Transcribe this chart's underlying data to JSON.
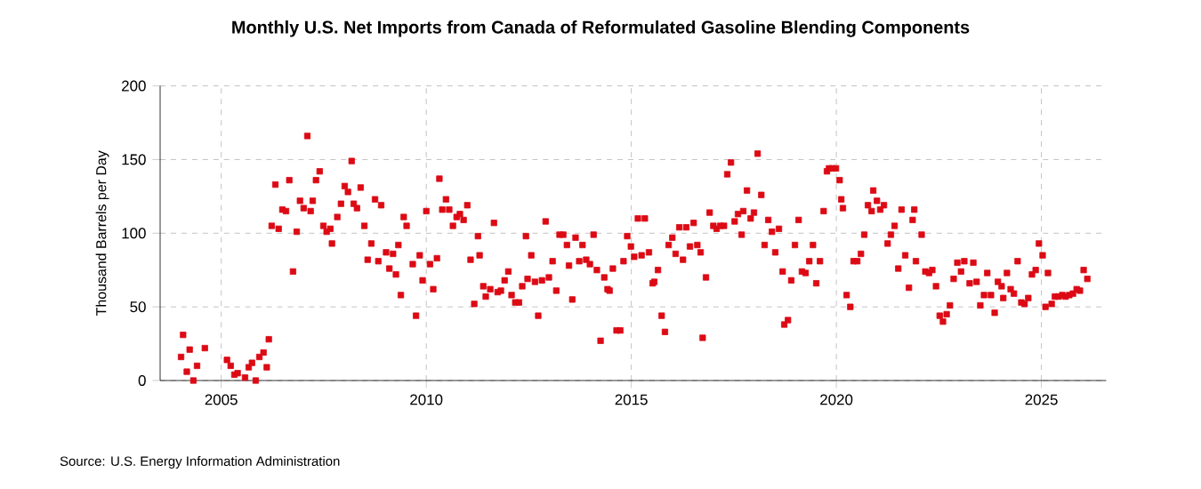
{
  "chart_data": {
    "type": "scatter",
    "title": "Monthly U.S. Net Imports from Canada of Reformulated Gasoline Blending Components",
    "ylabel": "Thousand Barrels per Day",
    "annotations": [
      "Source: U.S. Energy Information Administration"
    ],
    "color": "#dc0a14",
    "marker": "square",
    "grid": true,
    "xlim": [
      2003.51,
      2026.58
    ],
    "ylim": [
      0,
      200
    ],
    "xticks": [
      2005,
      2010,
      2015,
      2020,
      2025
    ],
    "yticks": [
      0,
      50,
      100,
      150,
      200
    ],
    "x": [
      2004.02,
      2004.07,
      2004.16,
      2004.23,
      2004.32,
      2004.41,
      2004.6,
      2005.14,
      2005.23,
      2005.32,
      2005.4,
      2005.58,
      2005.67,
      2005.75,
      2005.84,
      2005.93,
      2006.03,
      2006.11,
      2006.16,
      2006.23,
      2006.32,
      2006.4,
      2006.49,
      2006.58,
      2006.66,
      2006.75,
      2006.84,
      2006.92,
      2007.01,
      2007.1,
      2007.18,
      2007.23,
      2007.31,
      2007.4,
      2007.49,
      2007.57,
      2007.66,
      2007.7,
      2007.83,
      2007.92,
      2008.01,
      2008.09,
      2008.18,
      2008.23,
      2008.31,
      2008.4,
      2008.49,
      2008.57,
      2008.66,
      2008.75,
      2008.83,
      2008.9,
      2009.02,
      2009.1,
      2009.19,
      2009.26,
      2009.32,
      2009.38,
      2009.45,
      2009.52,
      2009.67,
      2009.75,
      2009.84,
      2009.91,
      2010.0,
      2010.09,
      2010.17,
      2010.26,
      2010.32,
      2010.39,
      2010.48,
      2010.56,
      2010.65,
      2010.74,
      2010.82,
      2010.91,
      2011.0,
      2011.08,
      2011.17,
      2011.26,
      2011.3,
      2011.39,
      2011.45,
      2011.56,
      2011.65,
      2011.74,
      2011.82,
      2011.91,
      2012.0,
      2012.08,
      2012.17,
      2012.26,
      2012.34,
      2012.43,
      2012.47,
      2012.56,
      2012.65,
      2012.73,
      2012.82,
      2012.91,
      2012.99,
      2013.08,
      2013.17,
      2013.25,
      2013.34,
      2013.43,
      2013.48,
      2013.56,
      2013.64,
      2013.73,
      2013.81,
      2013.9,
      2013.99,
      2014.08,
      2014.16,
      2014.25,
      2014.34,
      2014.42,
      2014.47,
      2014.55,
      2014.64,
      2014.73,
      2014.81,
      2014.9,
      2014.99,
      2015.07,
      2015.16,
      2015.25,
      2015.33,
      2015.43,
      2015.52,
      2015.56,
      2015.65,
      2015.74,
      2015.82,
      2015.91,
      2016.0,
      2016.08,
      2016.17,
      2016.26,
      2016.34,
      2016.43,
      2016.52,
      2016.61,
      2016.69,
      2016.74,
      2016.82,
      2016.91,
      2017.0,
      2017.08,
      2017.17,
      2017.26,
      2017.34,
      2017.43,
      2017.52,
      2017.6,
      2017.69,
      2017.73,
      2017.82,
      2017.91,
      2017.99,
      2018.08,
      2018.17,
      2018.25,
      2018.34,
      2018.43,
      2018.51,
      2018.6,
      2018.69,
      2018.73,
      2018.82,
      2018.9,
      2018.99,
      2019.08,
      2019.16,
      2019.25,
      2019.34,
      2019.43,
      2019.51,
      2019.6,
      2019.69,
      2019.77,
      2019.82,
      2019.9,
      2019.99,
      2020.08,
      2020.12,
      2020.16,
      2020.25,
      2020.34,
      2020.42,
      2020.51,
      2020.6,
      2020.68,
      2020.77,
      2020.86,
      2020.9,
      2020.99,
      2021.07,
      2021.16,
      2021.25,
      2021.33,
      2021.42,
      2021.51,
      2021.59,
      2021.68,
      2021.77,
      2021.86,
      2021.9,
      2021.94,
      2022.08,
      2022.17,
      2022.26,
      2022.34,
      2022.43,
      2022.52,
      2022.6,
      2022.69,
      2022.77,
      2022.86,
      2022.95,
      2023.04,
      2023.12,
      2023.25,
      2023.34,
      2023.42,
      2023.51,
      2023.6,
      2023.68,
      2023.77,
      2023.86,
      2023.94,
      2024.03,
      2024.07,
      2024.16,
      2024.25,
      2024.33,
      2024.42,
      2024.51,
      2024.59,
      2024.68,
      2024.77,
      2024.86,
      2024.94,
      2025.03,
      2025.1,
      2025.16,
      2025.25,
      2025.33,
      2025.42,
      2025.51,
      2025.59,
      2025.68,
      2025.77,
      2025.86,
      2025.94,
      2026.03,
      2026.12
    ],
    "values": [
      16,
      31,
      6,
      21,
      0,
      10,
      22,
      14,
      10,
      4,
      5,
      2,
      9,
      12,
      0,
      16,
      19,
      9,
      28,
      105,
      133,
      103,
      116,
      115,
      136,
      74,
      101,
      122,
      117,
      166,
      115,
      122,
      136,
      142,
      105,
      101,
      103,
      93,
      111,
      120,
      132,
      128,
      149,
      120,
      117,
      131,
      105,
      82,
      93,
      123,
      81,
      119,
      87,
      76,
      86,
      72,
      92,
      58,
      111,
      105,
      79,
      44,
      85,
      68,
      115,
      79,
      62,
      83,
      137,
      116,
      123,
      116,
      105,
      111,
      113,
      109,
      119,
      82,
      52,
      98,
      85,
      64,
      57,
      62,
      107,
      60,
      61,
      68,
      74,
      58,
      53,
      53,
      64,
      98,
      69,
      85,
      67,
      44,
      68,
      108,
      70,
      81,
      61,
      99,
      99,
      92,
      78,
      55,
      97,
      81,
      92,
      82,
      79,
      99,
      75,
      27,
      70,
      62,
      61,
      76,
      34,
      34,
      81,
      98,
      91,
      84,
      110,
      85,
      110,
      87,
      66,
      67,
      75,
      44,
      33,
      92,
      97,
      86,
      104,
      82,
      104,
      91,
      107,
      92,
      87,
      29,
      70,
      114,
      105,
      103,
      105,
      105,
      140,
      148,
      108,
      113,
      99,
      115,
      129,
      110,
      114,
      154,
      126,
      92,
      109,
      101,
      87,
      103,
      74,
      38,
      41,
      68,
      92,
      109,
      74,
      73,
      81,
      92,
      66,
      81,
      115,
      142,
      144,
      144,
      144,
      136,
      123,
      117,
      58,
      50,
      81,
      81,
      86,
      99,
      119,
      115,
      129,
      122,
      116,
      119,
      93,
      99,
      105,
      76,
      116,
      85,
      63,
      109,
      116,
      81,
      99,
      74,
      73,
      75,
      64,
      44,
      40,
      45,
      51,
      69,
      80,
      74,
      81,
      66,
      80,
      67,
      51,
      58,
      73,
      58,
      46,
      67,
      64,
      56,
      73,
      62,
      59,
      81,
      53,
      52,
      56,
      72,
      75,
      93,
      85,
      50,
      73,
      52,
      57,
      57,
      58,
      57,
      58,
      59,
      62,
      61,
      75,
      69
    ]
  }
}
